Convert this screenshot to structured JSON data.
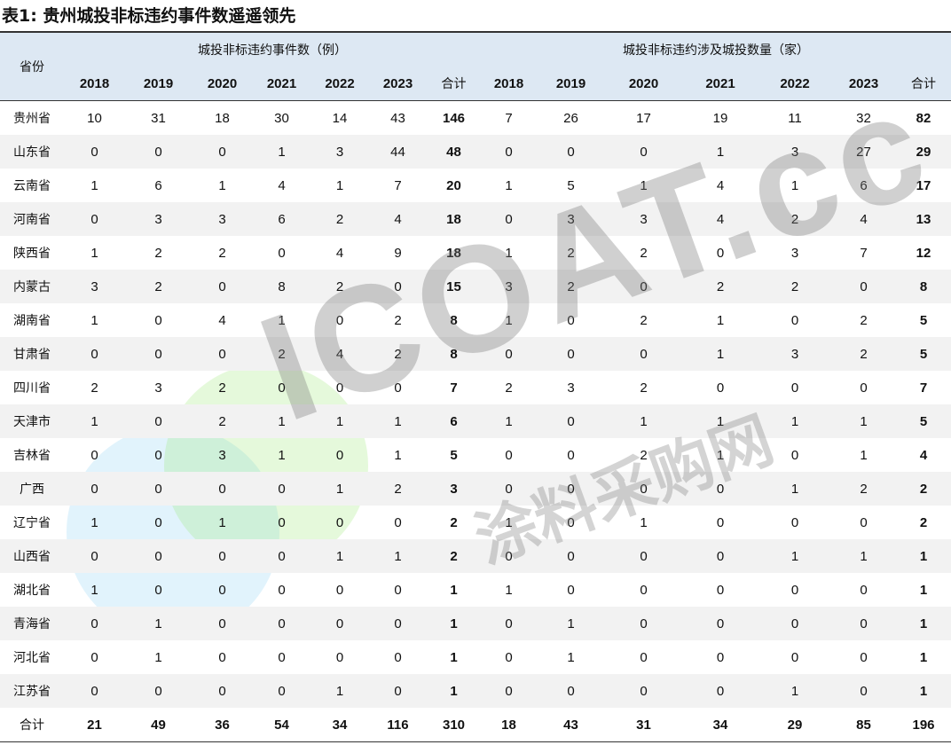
{
  "title": "表1:  贵州城投非标违约事件数遥遥领先",
  "header": {
    "province_label": "省份",
    "group1": "城投非标违约事件数（例）",
    "group2": "城投非标违约涉及城投数量（家）",
    "columns1": [
      "2018",
      "2019",
      "2020",
      "2021",
      "2022",
      "2023",
      "合计"
    ],
    "columns2": [
      "2018",
      "2019",
      "2020",
      "2021",
      "2022",
      "2023",
      "合计"
    ]
  },
  "rows": [
    {
      "province": "贵州省",
      "events": [
        "10",
        "31",
        "18",
        "30",
        "14",
        "43",
        "146"
      ],
      "entities": [
        "7",
        "26",
        "17",
        "19",
        "11",
        "32",
        "82"
      ]
    },
    {
      "province": "山东省",
      "events": [
        "0",
        "0",
        "0",
        "1",
        "3",
        "44",
        "48"
      ],
      "entities": [
        "0",
        "0",
        "0",
        "1",
        "3",
        "27",
        "29"
      ]
    },
    {
      "province": "云南省",
      "events": [
        "1",
        "6",
        "1",
        "4",
        "1",
        "7",
        "20"
      ],
      "entities": [
        "1",
        "5",
        "1",
        "4",
        "1",
        "6",
        "17"
      ]
    },
    {
      "province": "河南省",
      "events": [
        "0",
        "3",
        "3",
        "6",
        "2",
        "4",
        "18"
      ],
      "entities": [
        "0",
        "3",
        "3",
        "4",
        "2",
        "4",
        "13"
      ]
    },
    {
      "province": "陕西省",
      "events": [
        "1",
        "2",
        "2",
        "0",
        "4",
        "9",
        "18"
      ],
      "entities": [
        "1",
        "2",
        "2",
        "0",
        "3",
        "7",
        "12"
      ]
    },
    {
      "province": "内蒙古",
      "events": [
        "3",
        "2",
        "0",
        "8",
        "2",
        "0",
        "15"
      ],
      "entities": [
        "3",
        "2",
        "0",
        "2",
        "2",
        "0",
        "8"
      ]
    },
    {
      "province": "湖南省",
      "events": [
        "1",
        "0",
        "4",
        "1",
        "0",
        "2",
        "8"
      ],
      "entities": [
        "1",
        "0",
        "2",
        "1",
        "0",
        "2",
        "5"
      ]
    },
    {
      "province": "甘肃省",
      "events": [
        "0",
        "0",
        "0",
        "2",
        "4",
        "2",
        "8"
      ],
      "entities": [
        "0",
        "0",
        "0",
        "1",
        "3",
        "2",
        "5"
      ]
    },
    {
      "province": "四川省",
      "events": [
        "2",
        "3",
        "2",
        "0",
        "0",
        "0",
        "7"
      ],
      "entities": [
        "2",
        "3",
        "2",
        "0",
        "0",
        "0",
        "7"
      ]
    },
    {
      "province": "天津市",
      "events": [
        "1",
        "0",
        "2",
        "1",
        "1",
        "1",
        "6"
      ],
      "entities": [
        "1",
        "0",
        "1",
        "1",
        "1",
        "1",
        "5"
      ]
    },
    {
      "province": "吉林省",
      "events": [
        "0",
        "0",
        "3",
        "1",
        "0",
        "1",
        "5"
      ],
      "entities": [
        "0",
        "0",
        "2",
        "1",
        "0",
        "1",
        "4"
      ]
    },
    {
      "province": "广西",
      "events": [
        "0",
        "0",
        "0",
        "0",
        "1",
        "2",
        "3"
      ],
      "entities": [
        "0",
        "0",
        "0",
        "0",
        "1",
        "2",
        "2"
      ]
    },
    {
      "province": "辽宁省",
      "events": [
        "1",
        "0",
        "1",
        "0",
        "0",
        "0",
        "2"
      ],
      "entities": [
        "1",
        "0",
        "1",
        "0",
        "0",
        "0",
        "2"
      ]
    },
    {
      "province": "山西省",
      "events": [
        "0",
        "0",
        "0",
        "0",
        "1",
        "1",
        "2"
      ],
      "entities": [
        "0",
        "0",
        "0",
        "0",
        "1",
        "1",
        "1"
      ]
    },
    {
      "province": "湖北省",
      "events": [
        "1",
        "0",
        "0",
        "0",
        "0",
        "0",
        "1"
      ],
      "entities": [
        "1",
        "0",
        "0",
        "0",
        "0",
        "0",
        "1"
      ]
    },
    {
      "province": "青海省",
      "events": [
        "0",
        "1",
        "0",
        "0",
        "0",
        "0",
        "1"
      ],
      "entities": [
        "0",
        "1",
        "0",
        "0",
        "0",
        "0",
        "1"
      ]
    },
    {
      "province": "河北省",
      "events": [
        "0",
        "1",
        "0",
        "0",
        "0",
        "0",
        "1"
      ],
      "entities": [
        "0",
        "1",
        "0",
        "0",
        "0",
        "0",
        "1"
      ]
    },
    {
      "province": "江苏省",
      "events": [
        "0",
        "0",
        "0",
        "0",
        "1",
        "0",
        "1"
      ],
      "entities": [
        "0",
        "0",
        "0",
        "0",
        "1",
        "0",
        "1"
      ]
    },
    {
      "province": "合计",
      "events": [
        "21",
        "49",
        "36",
        "54",
        "34",
        "116",
        "310"
      ],
      "entities": [
        "18",
        "43",
        "31",
        "34",
        "29",
        "85",
        "196"
      ],
      "total": true
    }
  ],
  "watermark": {
    "text": "ICOAT.cc",
    "sub": "涂料采购网"
  }
}
